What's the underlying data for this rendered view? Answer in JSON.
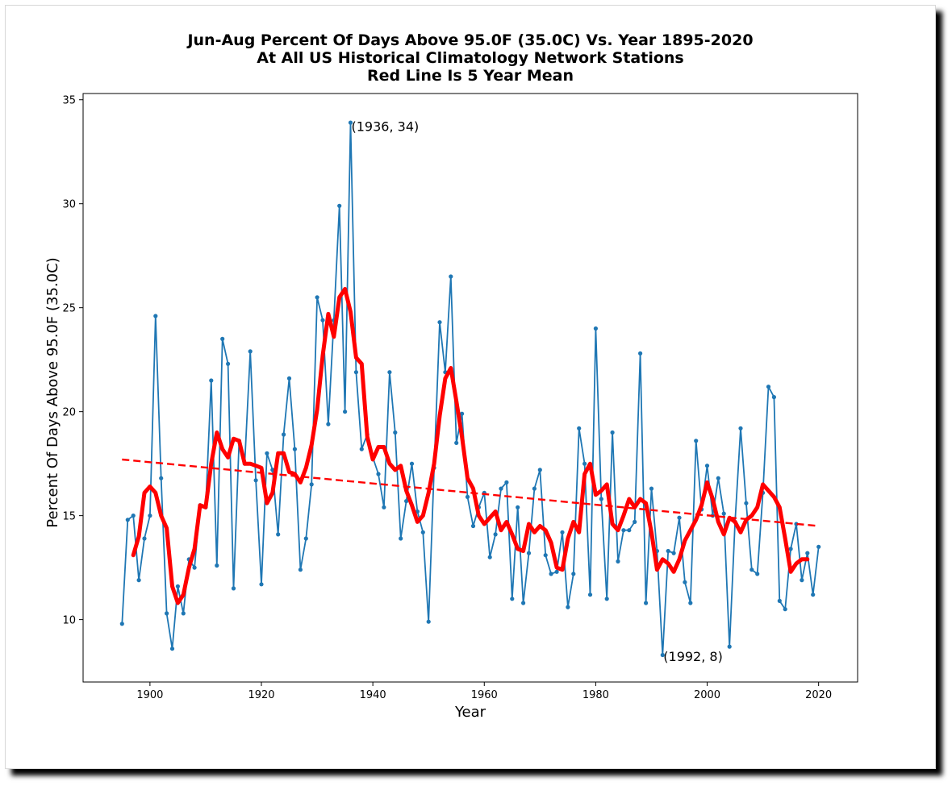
{
  "chart_data": {
    "type": "line",
    "title_lines": [
      "Jun-Aug Percent Of Days Above 95.0F (35.0C) Vs. Year 1895-2020",
      "At All US Historical Climatology Network Stations",
      "Red Line Is 5 Year Mean"
    ],
    "xlabel": "Year",
    "ylabel": "Percent Of Days Above 95.0F (35.0C)",
    "xlim": [
      1888,
      2027
    ],
    "ylim": [
      7,
      35.3
    ],
    "xticks": [
      1900,
      1920,
      1940,
      1960,
      1980,
      2000,
      2020
    ],
    "yticks": [
      10,
      15,
      20,
      25,
      30,
      35
    ],
    "grid": false,
    "colors": {
      "series": "#1f77b4",
      "mean": "#ff0000",
      "trend": "#ff0000"
    },
    "series": [
      {
        "style": "line-with-markers",
        "x": [
          1895,
          1896,
          1897,
          1898,
          1899,
          1900,
          1901,
          1902,
          1903,
          1904,
          1905,
          1906,
          1907,
          1908,
          1909,
          1910,
          1911,
          1912,
          1913,
          1914,
          1915,
          1916,
          1917,
          1918,
          1919,
          1920,
          1921,
          1922,
          1923,
          1924,
          1925,
          1926,
          1927,
          1928,
          1929,
          1930,
          1931,
          1932,
          1933,
          1934,
          1935,
          1936,
          1937,
          1938,
          1939,
          1940,
          1941,
          1942,
          1943,
          1944,
          1945,
          1946,
          1947,
          1948,
          1949,
          1950,
          1951,
          1952,
          1953,
          1954,
          1955,
          1956,
          1957,
          1958,
          1959,
          1960,
          1961,
          1962,
          1963,
          1964,
          1965,
          1966,
          1967,
          1968,
          1969,
          1970,
          1971,
          1972,
          1973,
          1974,
          1975,
          1976,
          1977,
          1978,
          1979,
          1980,
          1981,
          1982,
          1983,
          1984,
          1985,
          1986,
          1987,
          1988,
          1989,
          1990,
          1991,
          1992,
          1993,
          1994,
          1995,
          1996,
          1997,
          1998,
          1999,
          2000,
          2001,
          2002,
          2003,
          2004,
          2005,
          2006,
          2007,
          2008,
          2009,
          2010,
          2011,
          2012,
          2013,
          2014,
          2015,
          2016,
          2017,
          2018,
          2019,
          2020
        ],
        "values": [
          9.8,
          14.8,
          15.0,
          11.9,
          13.9,
          15.0,
          24.6,
          16.8,
          10.3,
          8.6,
          11.6,
          10.3,
          12.9,
          12.5,
          15.5,
          15.4,
          21.5,
          12.6,
          23.5,
          22.3,
          11.5,
          18.6,
          17.5,
          22.9,
          16.7,
          11.7,
          18.0,
          17.2,
          14.1,
          18.9,
          21.6,
          18.2,
          12.4,
          13.9,
          16.5,
          25.5,
          24.4,
          19.4,
          24.4,
          29.9,
          20.0,
          33.9,
          21.9,
          18.2,
          18.9,
          17.8,
          17.0,
          15.4,
          21.9,
          19.0,
          13.9,
          15.7,
          17.5,
          15.2,
          14.2,
          9.9,
          17.3,
          24.3,
          21.9,
          26.5,
          18.5,
          19.9,
          15.9,
          14.5,
          15.4,
          16.1,
          13.0,
          14.1,
          16.3,
          16.6,
          11.0,
          15.4,
          10.8,
          13.2,
          16.3,
          17.2,
          13.1,
          12.2,
          12.3,
          14.2,
          10.6,
          12.2,
          19.2,
          17.5,
          11.2,
          24.0,
          15.8,
          11.0,
          19.0,
          12.8,
          14.3,
          14.3,
          14.7,
          22.8,
          10.8,
          16.3,
          13.3,
          8.3,
          13.3,
          13.2,
          14.9,
          11.8,
          10.8,
          18.6,
          15.3,
          17.4,
          15.0,
          16.8,
          15.1,
          8.7,
          14.7,
          19.2,
          15.6,
          12.4,
          12.2,
          16.1,
          21.2,
          20.7,
          10.9,
          10.5,
          13.4,
          14.6,
          11.9,
          13.2,
          11.2,
          13.5
        ]
      },
      {
        "style": "thick-line",
        "x": [
          1897,
          1898,
          1899,
          1900,
          1901,
          1902,
          1903,
          1904,
          1905,
          1906,
          1907,
          1908,
          1909,
          1910,
          1911,
          1912,
          1913,
          1914,
          1915,
          1916,
          1917,
          1918,
          1919,
          1920,
          1921,
          1922,
          1923,
          1924,
          1925,
          1926,
          1927,
          1928,
          1929,
          1930,
          1931,
          1932,
          1933,
          1934,
          1935,
          1936,
          1937,
          1938,
          1939,
          1940,
          1941,
          1942,
          1943,
          1944,
          1945,
          1946,
          1947,
          1948,
          1949,
          1950,
          1951,
          1952,
          1953,
          1954,
          1955,
          1956,
          1957,
          1958,
          1959,
          1960,
          1961,
          1962,
          1963,
          1964,
          1965,
          1966,
          1967,
          1968,
          1969,
          1970,
          1971,
          1972,
          1973,
          1974,
          1975,
          1976,
          1977,
          1978,
          1979,
          1980,
          1981,
          1982,
          1983,
          1984,
          1985,
          1986,
          1987,
          1988,
          1989,
          1990,
          1991,
          1992,
          1993,
          1994,
          1995,
          1996,
          1997,
          1998,
          1999,
          2000,
          2001,
          2002,
          2003,
          2004,
          2005,
          2006,
          2007,
          2008,
          2009,
          2010,
          2011,
          2012,
          2013,
          2014,
          2015,
          2016,
          2017,
          2018
        ],
        "values": [
          13.1,
          14.0,
          16.1,
          16.4,
          16.1,
          15.0,
          14.4,
          11.6,
          10.8,
          11.2,
          12.5,
          13.4,
          15.5,
          15.4,
          17.5,
          19.0,
          18.2,
          17.8,
          18.7,
          18.6,
          17.5,
          17.5,
          17.4,
          17.3,
          15.6,
          16.1,
          18.0,
          18.0,
          17.1,
          17.0,
          16.6,
          17.3,
          18.4,
          20.1,
          22.7,
          24.7,
          23.6,
          25.5,
          25.9,
          24.8,
          22.6,
          22.3,
          18.8,
          17.7,
          18.3,
          18.3,
          17.5,
          17.2,
          17.4,
          16.2,
          15.5,
          14.7,
          15.0,
          16.1,
          17.5,
          19.8,
          21.6,
          22.1,
          20.5,
          18.8,
          16.8,
          16.3,
          15.0,
          14.6,
          14.9,
          15.2,
          14.3,
          14.7,
          14.1,
          13.4,
          13.3,
          14.6,
          14.2,
          14.5,
          14.3,
          13.7,
          12.5,
          12.4,
          13.9,
          14.7,
          14.2,
          17.0,
          17.5,
          16.0,
          16.2,
          16.5,
          14.6,
          14.3,
          15.0,
          15.8,
          15.4,
          15.8,
          15.6,
          14.2,
          12.4,
          12.9,
          12.7,
          12.3,
          12.9,
          13.8,
          14.3,
          14.8,
          15.5,
          16.6,
          15.8,
          14.7,
          14.1,
          14.9,
          14.7,
          14.2,
          14.8,
          15.0,
          15.4,
          16.5,
          16.2,
          15.9,
          15.4,
          13.9,
          12.3,
          12.7,
          12.9,
          12.9
        ]
      },
      {
        "style": "dashed-trend",
        "x": [
          1895,
          2020
        ],
        "values": [
          17.7,
          14.5
        ]
      }
    ],
    "annotations": [
      {
        "text": "(1936, 34)",
        "x": 1936,
        "y": 33.7
      },
      {
        "text": "(1992, 8)",
        "x": 1992,
        "y": 8.2
      }
    ]
  }
}
